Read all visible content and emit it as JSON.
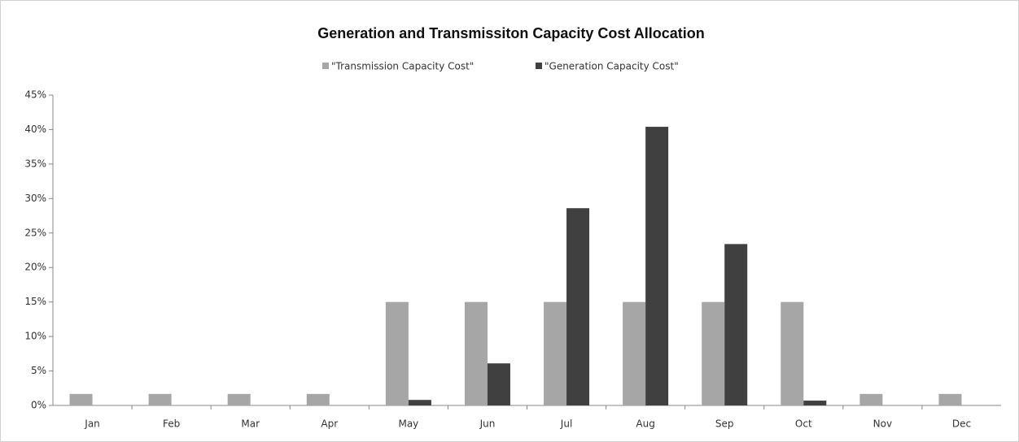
{
  "chart_data": {
    "type": "bar",
    "title": "Generation and Transmissiton Capacity Cost Allocation",
    "categories": [
      "Jan",
      "Feb",
      "Mar",
      "Apr",
      "May",
      "Jun",
      "Jul",
      "Aug",
      "Sep",
      "Oct",
      "Nov",
      "Dec"
    ],
    "series": [
      {
        "name": "\"Transmission Capacity Cost\"",
        "color": "#a6a6a6",
        "values": [
          1.67,
          1.67,
          1.67,
          1.67,
          15,
          15,
          15,
          15,
          15,
          15,
          1.67,
          1.67
        ]
      },
      {
        "name": "\"Generation Capacity Cost\"",
        "color": "#404040",
        "values": [
          0,
          0,
          0,
          0,
          0.8,
          6.1,
          28.6,
          40.4,
          23.4,
          0.7,
          0,
          0
        ]
      }
    ],
    "ylim": [
      0,
      45
    ],
    "yticks": [
      {
        "value": 0,
        "label": "0%"
      },
      {
        "value": 5,
        "label": "5%"
      },
      {
        "value": 10,
        "label": "10%"
      },
      {
        "value": 15,
        "label": "15%"
      },
      {
        "value": 20,
        "label": "20%"
      },
      {
        "value": 25,
        "label": "25%"
      },
      {
        "value": 30,
        "label": "30%"
      },
      {
        "value": 35,
        "label": "35%"
      },
      {
        "value": 40,
        "label": "40%"
      },
      {
        "value": 45,
        "label": "45%"
      }
    ],
    "grid": false,
    "legend": "top"
  }
}
